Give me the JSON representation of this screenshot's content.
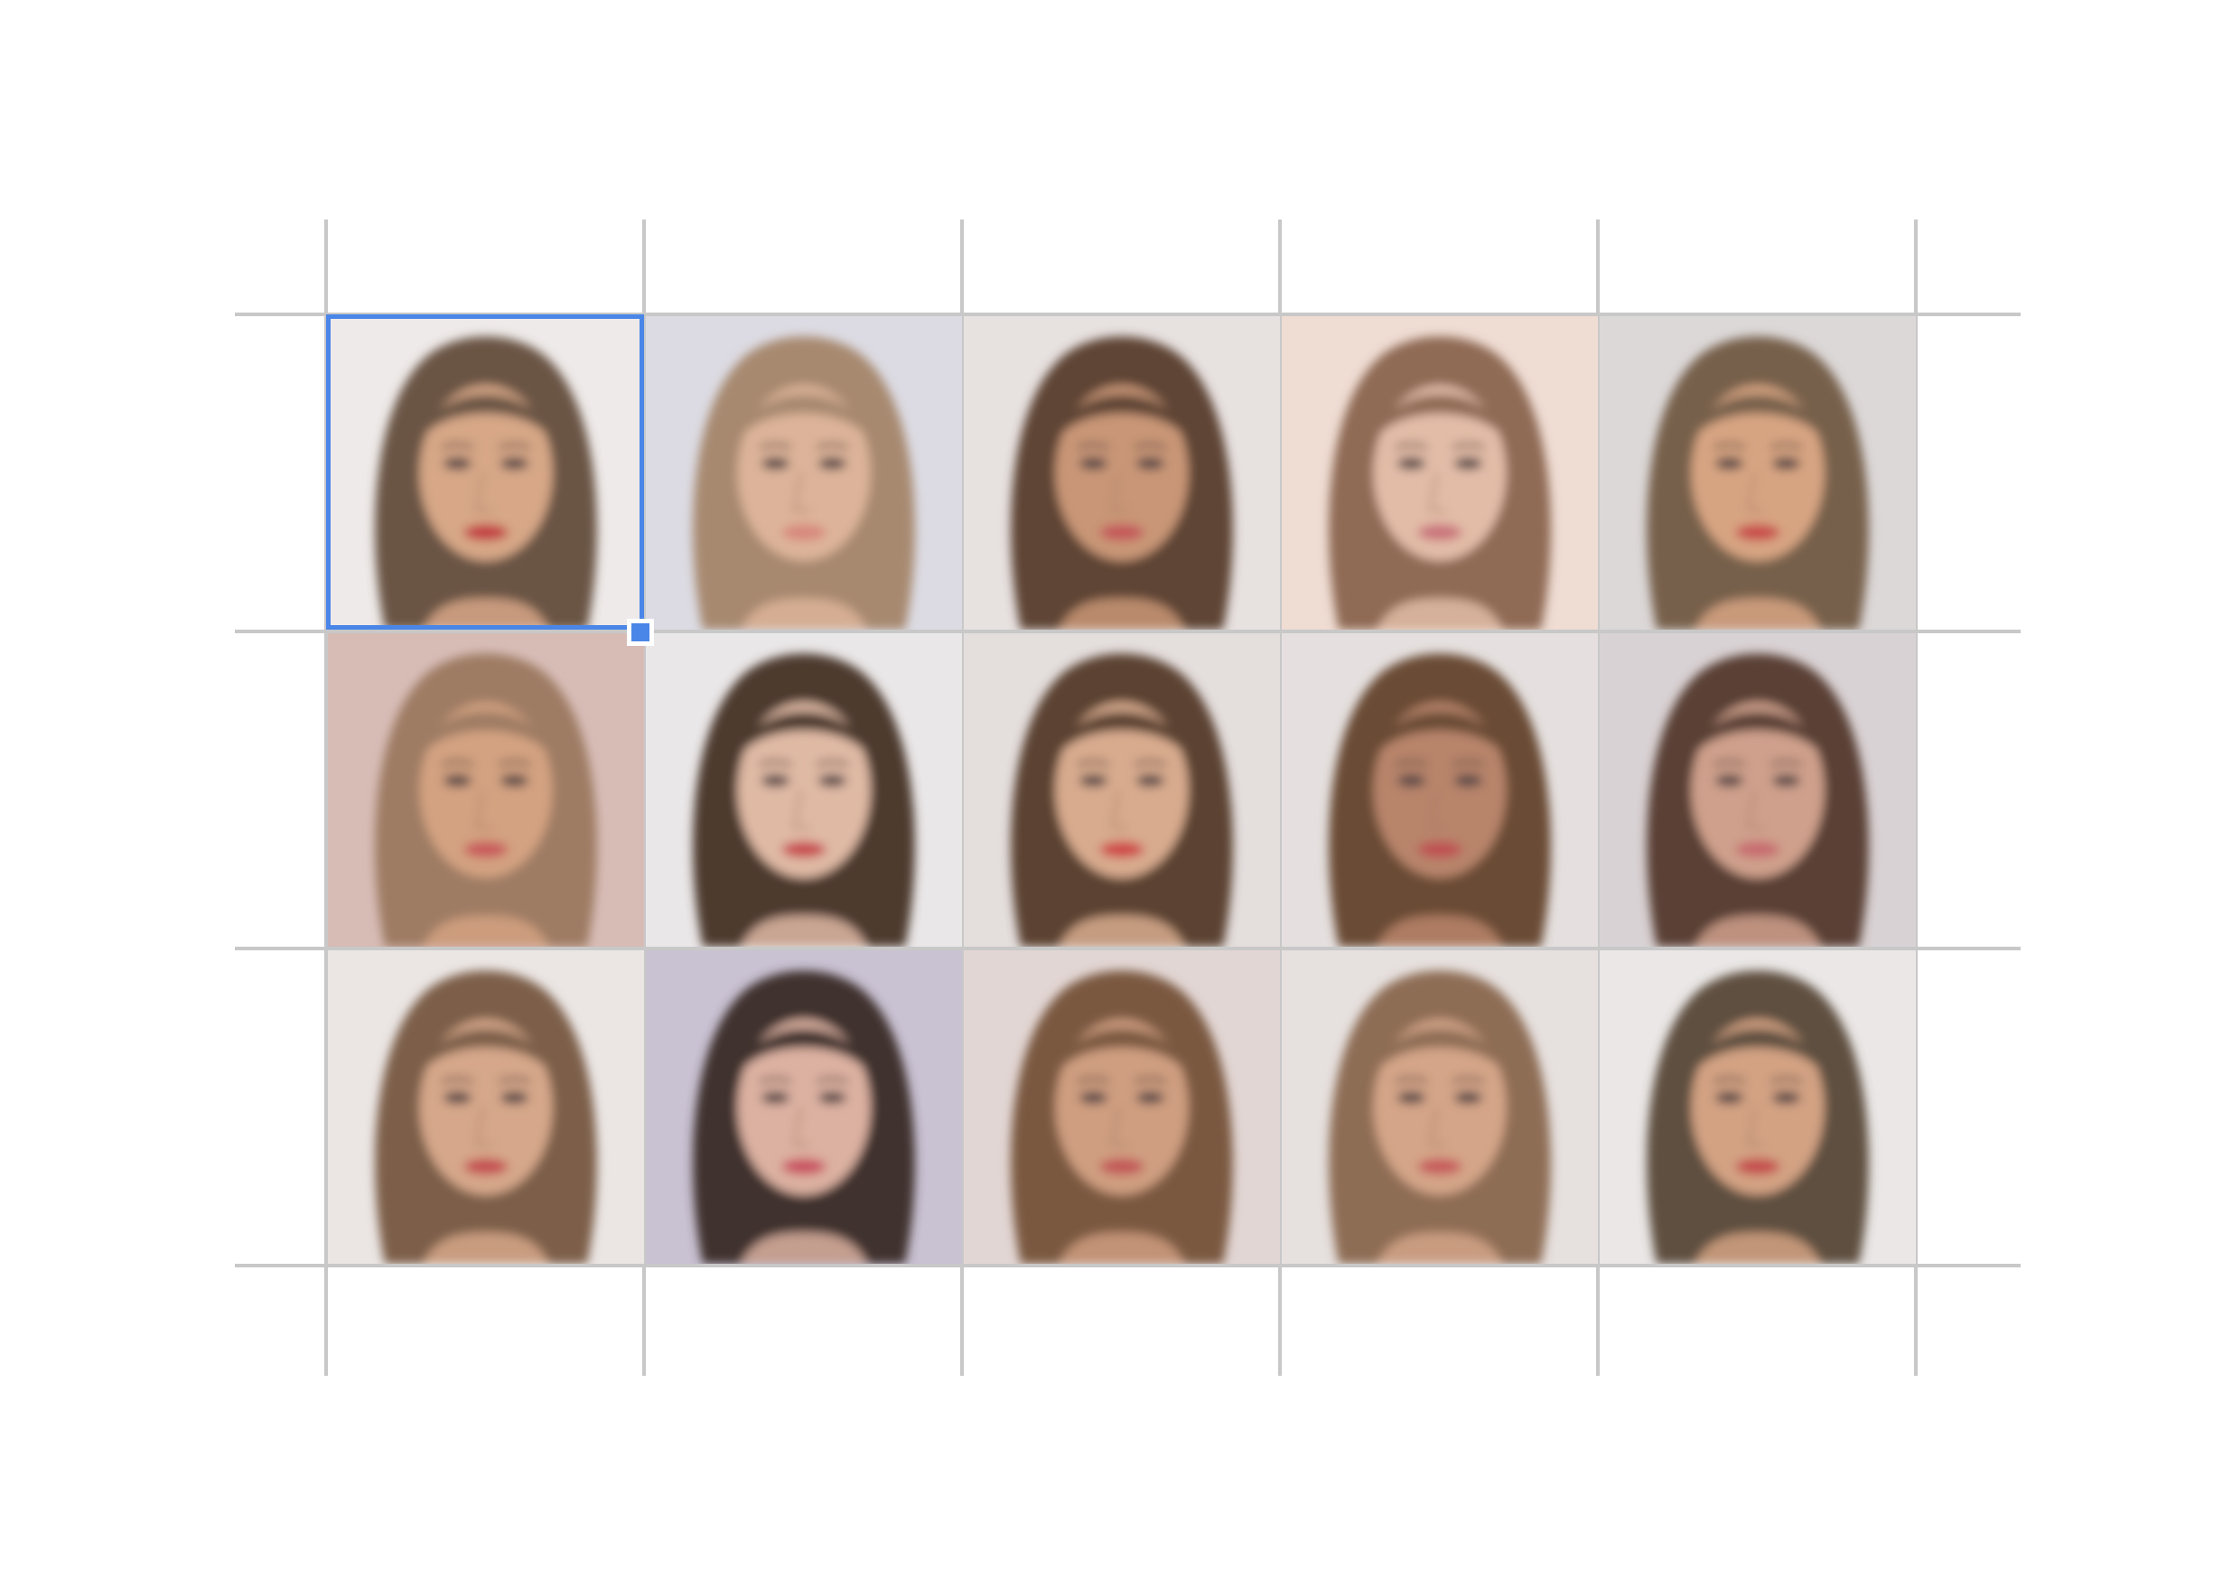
{
  "selection_color": "#4a86e8",
  "grid_line_color": "#c8c8c8",
  "rows": 3,
  "columns": 5,
  "cells": [
    {
      "bg": "#eeeae9",
      "hair": "#6b5544",
      "skin": "#d7a787",
      "lip": "#c23a3f"
    },
    {
      "bg": "#dcdbe3",
      "hair": "#a7896f",
      "skin": "#ddb49a",
      "lip": "#d8877c"
    },
    {
      "bg": "#e7e1e0",
      "hair": "#5e4434",
      "skin": "#c99677",
      "lip": "#c4575a"
    },
    {
      "bg": "#efdcd3",
      "hair": "#8f6a55",
      "skin": "#e2bca7",
      "lip": "#c9727a"
    },
    {
      "bg": "#dcd8d8",
      "hair": "#77604b",
      "skin": "#d7a482",
      "lip": "#c84848"
    },
    {
      "bg": "#d7bcb6",
      "hair": "#9e7c64",
      "skin": "#d3a281",
      "lip": "#c9595c"
    },
    {
      "bg": "#eae7e8",
      "hair": "#4e3a2f",
      "skin": "#dfb9a4",
      "lip": "#c84a4f"
    },
    {
      "bg": "#e4dedd",
      "hair": "#5c4233",
      "skin": "#d8ab8e",
      "lip": "#cf4447"
    },
    {
      "bg": "#e5e0df",
      "hair": "#6a4b36",
      "skin": "#b8846a",
      "lip": "#bf4f52"
    },
    {
      "bg": "#d9d2d4",
      "hair": "#5a4034",
      "skin": "#cfa08c",
      "lip": "#c86a6f"
    },
    {
      "bg": "#ebe6e4",
      "hair": "#7d5f48",
      "skin": "#d6a78a",
      "lip": "#c44b50"
    },
    {
      "bg": "#c9c2d3",
      "hair": "#3f312d",
      "skin": "#dcb1a1",
      "lip": "#c95061"
    },
    {
      "bg": "#e2d6d4",
      "hair": "#7a5840",
      "skin": "#cf9e80",
      "lip": "#c35556"
    },
    {
      "bg": "#e6e0de",
      "hair": "#8e6d55",
      "skin": "#d4a588",
      "lip": "#c75a5b"
    },
    {
      "bg": "#eae7e6",
      "hair": "#5e5040",
      "skin": "#d3a283",
      "lip": "#c44a4b"
    }
  ]
}
